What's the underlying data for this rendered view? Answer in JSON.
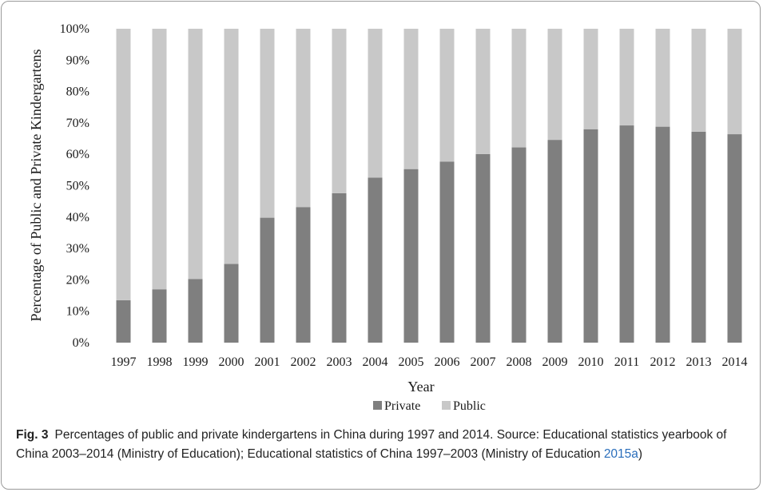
{
  "chart_data": {
    "type": "bar",
    "stacked": true,
    "percent_stacked": true,
    "title": "",
    "xlabel": "Year",
    "ylabel": "Percentage of Public and Private Kindergartens",
    "ylim": [
      0,
      100
    ],
    "yticks": [
      "0%",
      "10%",
      "20%",
      "30%",
      "40%",
      "50%",
      "60%",
      "70%",
      "80%",
      "90%",
      "100%"
    ],
    "categories": [
      "1997",
      "1998",
      "1999",
      "2000",
      "2001",
      "2002",
      "2003",
      "2004",
      "2005",
      "2006",
      "2007",
      "2008",
      "2009",
      "2010",
      "2011",
      "2012",
      "2013",
      "2014"
    ],
    "series": [
      {
        "name": "Private",
        "color": "#7f7f7f",
        "values": [
          13.5,
          17.0,
          20.3,
          25.1,
          39.8,
          43.2,
          47.6,
          52.6,
          55.3,
          57.7,
          60.1,
          62.2,
          64.6,
          68.0,
          69.2,
          68.8,
          67.2,
          66.4
        ]
      },
      {
        "name": "Public",
        "color": "#c8c8c8",
        "values": [
          86.5,
          83.0,
          79.7,
          74.9,
          60.2,
          56.8,
          52.4,
          47.4,
          44.7,
          42.3,
          39.9,
          37.8,
          35.4,
          32.0,
          30.8,
          31.2,
          32.8,
          33.6
        ]
      }
    ],
    "legend_position": "bottom",
    "grid": false
  },
  "caption": {
    "label": "Fig. 3",
    "text": "Percentages of public and private kindergartens in China during 1997 and 2014. Source: Educational statistics yearbook of China 2003–2014 (Ministry of Education); Educational statistics of China 1997–2003 (Ministry of Education ",
    "link_text": "2015a",
    "closing": ")"
  }
}
